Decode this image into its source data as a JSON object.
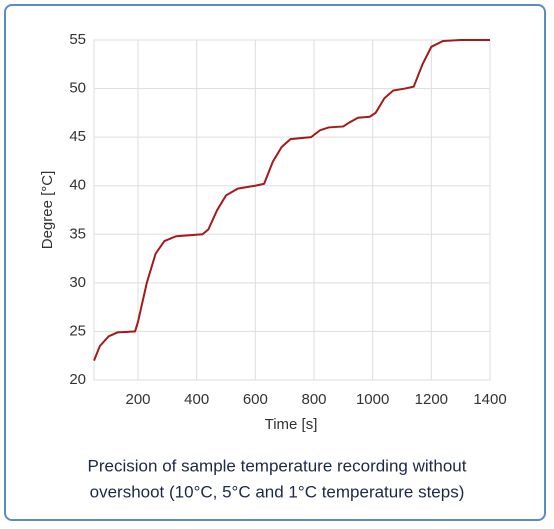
{
  "chart_data": {
    "type": "line",
    "x_label": "Time [s]",
    "y_label": "Degree [°C]",
    "x": [
      50,
      70,
      100,
      130,
      190,
      200,
      230,
      260,
      290,
      330,
      420,
      440,
      470,
      500,
      540,
      600,
      630,
      660,
      690,
      720,
      790,
      820,
      850,
      900,
      920,
      950,
      990,
      1010,
      1040,
      1070,
      1110,
      1140,
      1170,
      1200,
      1240,
      1300,
      1400
    ],
    "series": [
      {
        "name": "Sample temperature",
        "color": "#a31a1a",
        "values": [
          22,
          23.5,
          24.5,
          24.9,
          25,
          26,
          30,
          33,
          34.3,
          34.8,
          35,
          35.5,
          37.5,
          39,
          39.7,
          40,
          40.2,
          42.5,
          44,
          44.8,
          45,
          45.7,
          46,
          46.1,
          46.5,
          47,
          47.1,
          47.5,
          49,
          49.8,
          50,
          50.2,
          52.5,
          54.3,
          54.9,
          55,
          55
        ]
      }
    ],
    "xlim": [
      50,
      1400
    ],
    "ylim": [
      20,
      55
    ],
    "xticks": [
      200,
      400,
      600,
      800,
      1000,
      1200,
      1400
    ],
    "yticks": [
      20,
      25,
      30,
      35,
      40,
      45,
      50,
      55
    ],
    "grid": true
  },
  "caption": [
    "Precision of sample temperature recording without",
    "overshoot (10°C, 5°C and 1°C temperature steps)"
  ]
}
